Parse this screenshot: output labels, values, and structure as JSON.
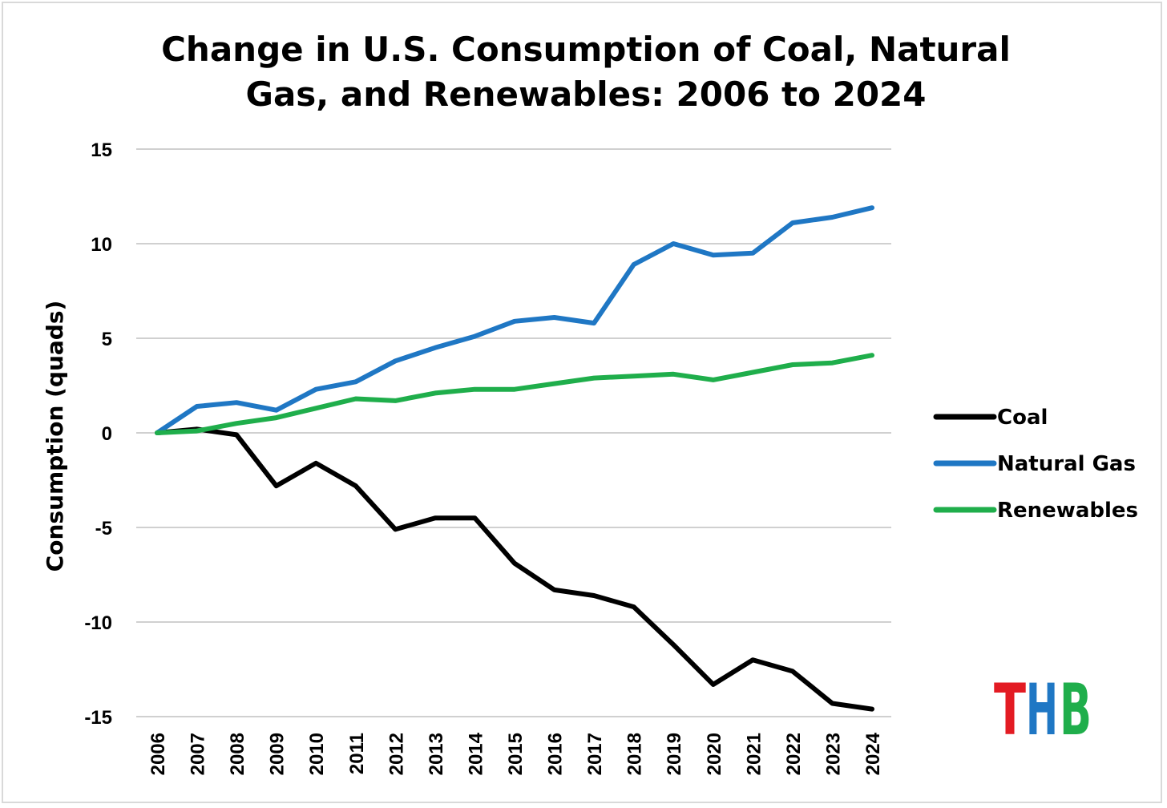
{
  "chart_data": {
    "type": "line",
    "title": [
      "Change in U.S. Consumption of Coal, Natural",
      "Gas, and Renewables: 2006 to 2024"
    ],
    "ylabel": "Consumption (quads)",
    "xlabel": "",
    "ylim": [
      -15,
      15
    ],
    "yticks": [
      15,
      10,
      5,
      0,
      -5,
      -10,
      -15
    ],
    "grid": true,
    "legend_position": "right",
    "categories": [
      "2006",
      "2007",
      "2008",
      "2009",
      "2010",
      "2011",
      "2012",
      "2013",
      "2014",
      "2015",
      "2016",
      "2017",
      "2018",
      "2019",
      "2020",
      "2021",
      "2022",
      "2023",
      "2024"
    ],
    "series": [
      {
        "name": "Coal",
        "color": "#000000",
        "values": [
          0,
          0.2,
          -0.1,
          -2.8,
          -1.6,
          -2.8,
          -5.1,
          -4.5,
          -4.5,
          -6.9,
          -8.3,
          -8.6,
          -9.2,
          -11.2,
          -13.3,
          -12.0,
          -12.6,
          -14.3,
          -14.6
        ]
      },
      {
        "name": "Natural Gas",
        "color": "#1f77c4",
        "values": [
          0,
          1.4,
          1.6,
          1.2,
          2.3,
          2.7,
          3.8,
          4.5,
          5.1,
          5.9,
          6.1,
          5.8,
          8.9,
          10.0,
          9.4,
          9.5,
          11.1,
          11.4,
          11.9
        ]
      },
      {
        "name": "Renewables",
        "color": "#1fae4b",
        "values": [
          0,
          0.1,
          0.5,
          0.8,
          1.3,
          1.8,
          1.7,
          2.1,
          2.3,
          2.3,
          2.6,
          2.9,
          3.0,
          3.1,
          2.8,
          3.2,
          3.6,
          3.7,
          4.1
        ]
      }
    ]
  },
  "logo": {
    "letters": [
      {
        "char": "T",
        "color": "#e31b23"
      },
      {
        "char": "H",
        "color": "#1f77c4"
      },
      {
        "char": "B",
        "color": "#1fae4b"
      }
    ]
  }
}
